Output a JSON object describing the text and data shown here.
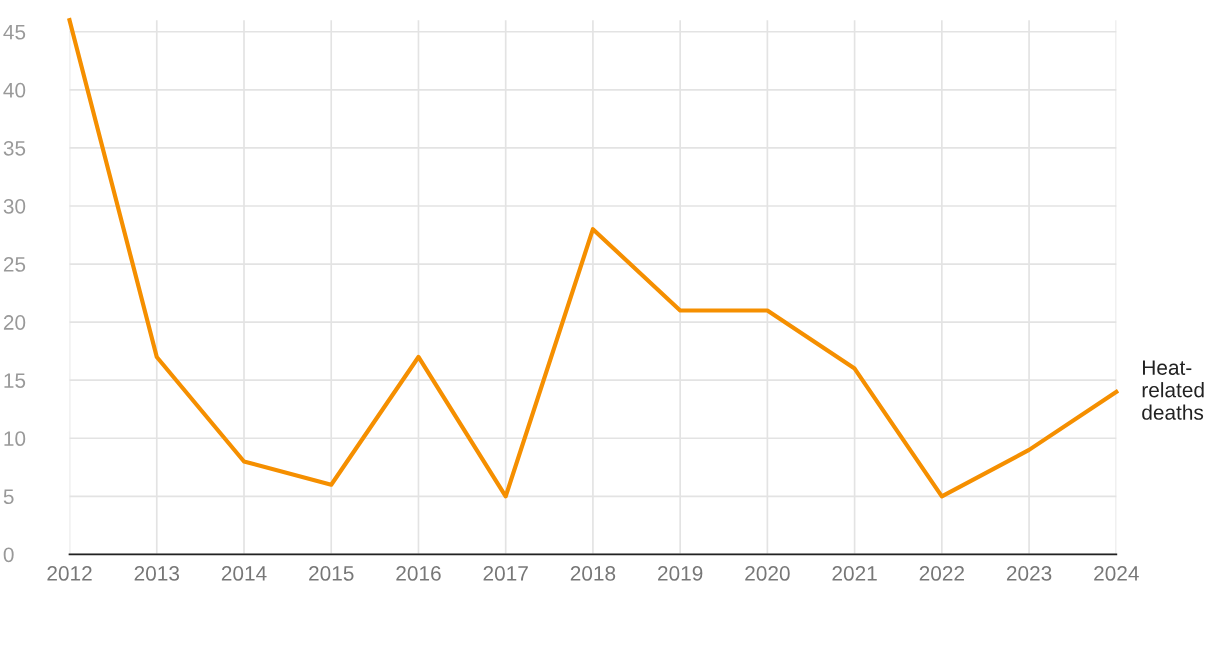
{
  "chart_data": {
    "type": "line",
    "x": [
      2012,
      2013,
      2014,
      2015,
      2016,
      2017,
      2018,
      2019,
      2020,
      2021,
      2022,
      2023,
      2024
    ],
    "series": [
      {
        "name": "Heat-related deaths",
        "color": "#f58f00",
        "values": [
          46,
          17,
          8,
          6,
          17,
          5,
          28,
          21,
          21,
          16,
          5,
          9,
          14
        ]
      }
    ],
    "xlim": [
      2012,
      2024
    ],
    "xticks": [
      2012,
      2013,
      2014,
      2015,
      2016,
      2017,
      2018,
      2019,
      2020,
      2021,
      2022,
      2023,
      2024
    ],
    "ylim": [
      0,
      46
    ],
    "yticks": [
      0,
      5,
      10,
      15,
      20,
      25,
      30,
      35,
      40,
      45
    ],
    "grid": true,
    "marker": "none",
    "line_style": "solid",
    "legend": false
  }
}
